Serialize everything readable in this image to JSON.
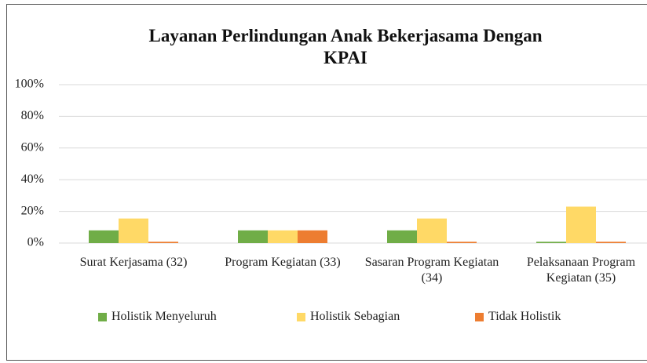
{
  "chart_data": {
    "type": "bar",
    "title": "Layanan Perlindungan Anak Bekerjasama Dengan KPAI",
    "categories": [
      "Surat Kerjasama (32)",
      "Program Kegiatan (33)",
      "Sasaran Program Kegiatan (34)",
      "Pelaksanaan Program Kegiatan (35)"
    ],
    "series": [
      {
        "name": "Holistik Menyeluruh",
        "color": "#70ad47",
        "values": [
          8,
          8,
          8,
          0.8
        ]
      },
      {
        "name": "Holistik Sebagian",
        "color": "#ffd966",
        "values": [
          15.5,
          8,
          15.5,
          23
        ]
      },
      {
        "name": "Tidak Holistik",
        "color": "#ed7d31",
        "values": [
          0.8,
          8,
          0.8,
          0.8
        ]
      }
    ],
    "ylim": [
      0,
      100
    ],
    "yticks": [
      {
        "value": 0,
        "label": "0%"
      },
      {
        "value": 20,
        "label": "20%"
      },
      {
        "value": 40,
        "label": "40%"
      },
      {
        "value": 60,
        "label": "60%"
      },
      {
        "value": 80,
        "label": "80%"
      },
      {
        "value": 100,
        "label": "100%"
      }
    ],
    "grid": true,
    "legend": "bottom"
  }
}
